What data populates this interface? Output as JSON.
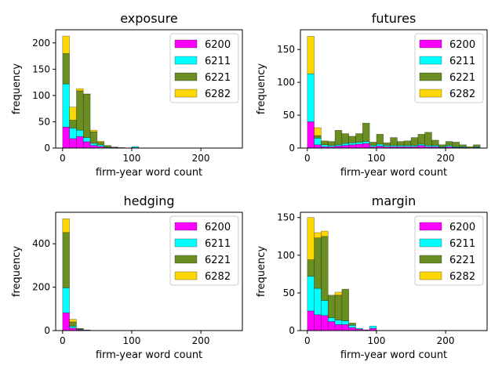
{
  "colors": {
    "6200": "#ff00ff",
    "6211": "#00ffff",
    "6221": "#6b8e23",
    "6282": "#ffd700"
  },
  "chart_data": [
    {
      "type": "bar",
      "stacked": true,
      "title": "exposure",
      "xlabel": "firm-year word count",
      "ylabel": "frequency",
      "xlim": [
        -10,
        260
      ],
      "ylim": [
        0,
        225
      ],
      "xticks": [
        0,
        100,
        200
      ],
      "yticks": [
        0,
        50,
        100,
        150,
        200
      ],
      "bin_width": 10,
      "bins": [
        0,
        10,
        20,
        30,
        40,
        50,
        60,
        70,
        80,
        90,
        100,
        110,
        120,
        130,
        140,
        150,
        160,
        170,
        180,
        190,
        200,
        210,
        220,
        230,
        240
      ],
      "legend_position": "top-right",
      "series": [
        {
          "name": "6200",
          "values": [
            40,
            18,
            22,
            12,
            5,
            3,
            1,
            0,
            0,
            0,
            1,
            0,
            0,
            0,
            0,
            0,
            0,
            0,
            0,
            0,
            0,
            0,
            0,
            0,
            0
          ]
        },
        {
          "name": "6211",
          "values": [
            82,
            20,
            12,
            8,
            4,
            3,
            1,
            1,
            0,
            0,
            2,
            0,
            0,
            0,
            0,
            0,
            0,
            0,
            0,
            0,
            0,
            0,
            0,
            0,
            0
          ]
        },
        {
          "name": "6221",
          "values": [
            58,
            15,
            75,
            82,
            22,
            5,
            3,
            1,
            1,
            0,
            0,
            0,
            0,
            0,
            0,
            0,
            0,
            0,
            0,
            0,
            0,
            0,
            0,
            0,
            0
          ]
        },
        {
          "name": "6282",
          "values": [
            33,
            25,
            4,
            1,
            3,
            2,
            0,
            0,
            0,
            0,
            0,
            0,
            0,
            0,
            0,
            0,
            0,
            0,
            0,
            0,
            0,
            0,
            0,
            0,
            0
          ]
        }
      ]
    },
    {
      "type": "bar",
      "stacked": true,
      "title": "futures",
      "xlabel": "firm-year word count",
      "ylabel": "frequency",
      "xlim": [
        -10,
        260
      ],
      "ylim": [
        0,
        180
      ],
      "xticks": [
        0,
        100,
        200
      ],
      "yticks": [
        0,
        50,
        100,
        150
      ],
      "bin_width": 10,
      "bins": [
        0,
        10,
        20,
        30,
        40,
        50,
        60,
        70,
        80,
        90,
        100,
        110,
        120,
        130,
        140,
        150,
        160,
        170,
        180,
        190,
        200,
        210,
        220,
        230,
        240
      ],
      "legend_position": "top-right",
      "series": [
        {
          "name": "6200",
          "values": [
            40,
            5,
            2,
            2,
            3,
            4,
            5,
            6,
            7,
            2,
            3,
            2,
            2,
            2,
            2,
            2,
            4,
            2,
            2,
            1,
            2,
            1,
            1,
            0,
            1
          ]
        },
        {
          "name": "6211",
          "values": [
            73,
            10,
            3,
            2,
            2,
            3,
            3,
            3,
            3,
            2,
            3,
            2,
            2,
            2,
            2,
            2,
            2,
            2,
            2,
            1,
            2,
            1,
            1,
            0,
            1
          ]
        },
        {
          "name": "6221",
          "values": [
            0,
            4,
            5,
            6,
            22,
            15,
            10,
            13,
            28,
            5,
            15,
            4,
            12,
            6,
            7,
            12,
            15,
            20,
            8,
            3,
            6,
            7,
            3,
            2,
            3
          ]
        },
        {
          "name": "6282",
          "values": [
            57,
            12,
            1,
            0,
            0,
            0,
            0,
            0,
            0,
            0,
            0,
            0,
            0,
            0,
            0,
            0,
            0,
            0,
            0,
            0,
            0,
            0,
            0,
            0,
            0
          ]
        }
      ]
    },
    {
      "type": "bar",
      "stacked": true,
      "title": "hedging",
      "xlabel": "firm-year word count",
      "ylabel": "frequency",
      "xlim": [
        -10,
        260
      ],
      "ylim": [
        0,
        545
      ],
      "xticks": [
        0,
        100,
        200
      ],
      "yticks": [
        0,
        200,
        400
      ],
      "bin_width": 10,
      "bins": [
        0,
        10,
        20,
        30,
        40,
        50,
        60,
        70,
        80,
        90,
        100,
        110,
        120,
        130,
        140,
        150,
        160,
        170,
        180,
        190,
        200,
        210,
        220,
        230,
        240
      ],
      "legend_position": "top-right",
      "series": [
        {
          "name": "6200",
          "values": [
            82,
            12,
            4,
            1,
            0,
            0,
            0,
            0,
            0,
            0,
            0,
            0,
            0,
            0,
            0,
            0,
            0,
            0,
            0,
            0,
            0,
            0,
            0,
            0,
            0
          ]
        },
        {
          "name": "6211",
          "values": [
            115,
            8,
            2,
            1,
            0,
            0,
            0,
            0,
            0,
            0,
            0,
            0,
            0,
            0,
            0,
            0,
            0,
            0,
            0,
            0,
            0,
            0,
            0,
            0,
            0
          ]
        },
        {
          "name": "6221",
          "values": [
            255,
            20,
            3,
            1,
            0,
            0,
            0,
            0,
            0,
            0,
            0,
            0,
            0,
            0,
            0,
            0,
            0,
            0,
            0,
            0,
            0,
            0,
            0,
            0,
            0
          ]
        },
        {
          "name": "6282",
          "values": [
            63,
            12,
            1,
            0,
            0,
            0,
            0,
            0,
            0,
            0,
            0,
            0,
            0,
            0,
            0,
            0,
            0,
            0,
            0,
            0,
            0,
            0,
            0,
            0,
            0
          ]
        }
      ]
    },
    {
      "type": "bar",
      "stacked": true,
      "title": "margin",
      "xlabel": "firm-year word count",
      "ylabel": "frequency",
      "xlim": [
        -10,
        260
      ],
      "ylim": [
        0,
        157
      ],
      "xticks": [
        0,
        100,
        200
      ],
      "yticks": [
        0,
        50,
        100,
        150
      ],
      "bin_width": 10,
      "bins": [
        0,
        10,
        20,
        30,
        40,
        50,
        60,
        70,
        80,
        90,
        100,
        110,
        120,
        130,
        140,
        150,
        160,
        170,
        180,
        190,
        200,
        210,
        220,
        230,
        240
      ],
      "legend_position": "top-right",
      "series": [
        {
          "name": "6200",
          "values": [
            26,
            21,
            20,
            12,
            8,
            8,
            4,
            2,
            1,
            3,
            0,
            0,
            0,
            0,
            0,
            0,
            0,
            0,
            0,
            0,
            0,
            0,
            0,
            0,
            0
          ]
        },
        {
          "name": "6211",
          "values": [
            46,
            35,
            20,
            5,
            6,
            5,
            3,
            1,
            0,
            3,
            0,
            0,
            0,
            0,
            0,
            0,
            0,
            0,
            0,
            0,
            0,
            0,
            0,
            0,
            0
          ]
        },
        {
          "name": "6221",
          "values": [
            22,
            67,
            85,
            30,
            33,
            42,
            3,
            0,
            0,
            0,
            0,
            0,
            0,
            0,
            0,
            0,
            0,
            0,
            0,
            0,
            0,
            0,
            0,
            0,
            0
          ]
        },
        {
          "name": "6282",
          "values": [
            56,
            7,
            7,
            0,
            4,
            0,
            0,
            0,
            0,
            0,
            0,
            0,
            0,
            0,
            0,
            0,
            0,
            0,
            0,
            0,
            0,
            0,
            0,
            0,
            0
          ]
        }
      ]
    }
  ]
}
